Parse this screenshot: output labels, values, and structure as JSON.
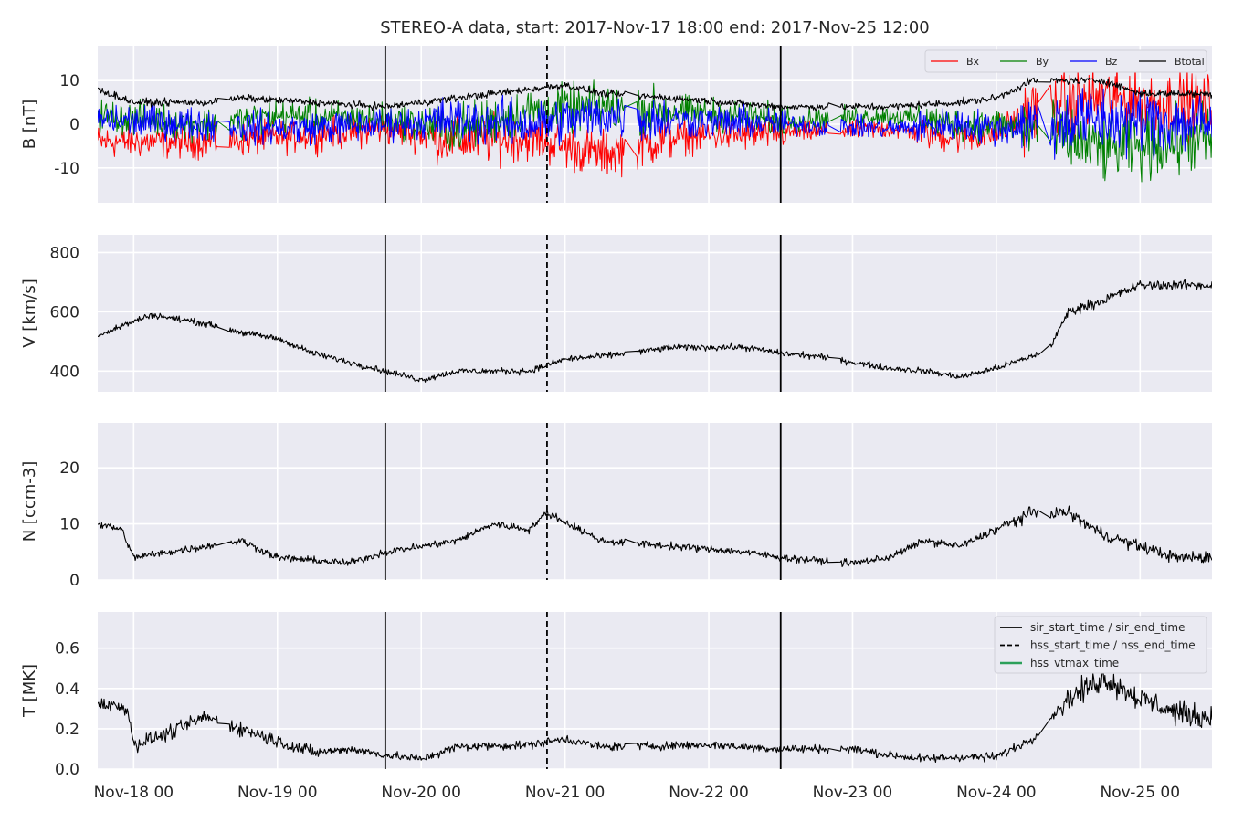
{
  "title": "STEREO-A data, start: 2017-Nov-17 18:00  end: 2017-Nov-25 12:00",
  "colors": {
    "bx": "#ff0000",
    "by": "#008000",
    "bz": "#0000ff",
    "btotal": "#000000",
    "vt": "#2ca05a",
    "bg": "#eaeaf2",
    "grid": "#ffffff"
  },
  "chart_data": {
    "type": "line",
    "x_range": [
      "2017-11-17 18:00",
      "2017-11-25 12:00"
    ],
    "xticks": [
      "Nov-18 00",
      "Nov-19 00",
      "Nov-20 00",
      "Nov-21 00",
      "Nov-22 00",
      "Nov-23 00",
      "Nov-24 00",
      "Nov-25 00"
    ],
    "vlines": [
      {
        "time": "2017-11-19 18:00",
        "style": "solid",
        "label": "sir_start_time / sir_end_time"
      },
      {
        "time": "2017-11-20 21:00",
        "style": "dashed",
        "label": "hss_start_time / hss_end_time"
      },
      {
        "time": "2017-11-22 12:00",
        "style": "solid",
        "label": "sir_start_time / sir_end_time"
      }
    ],
    "panels": [
      {
        "ylabel": "B [nT]",
        "ylim": [
          -18,
          18
        ],
        "yticks": [
          -10,
          0,
          10
        ],
        "legend": {
          "position": "top-right",
          "entries": [
            "Bx",
            "By",
            "Bz",
            "Btotal"
          ]
        },
        "series": [
          {
            "name": "Bx",
            "color": "#ff0000",
            "knots": [
              [
                "2017-11-17 18:00",
                -4
              ],
              [
                "2017-11-18 12:00",
                -4
              ],
              [
                "2017-11-19 00:00",
                -3
              ],
              [
                "2017-11-19 18:00",
                -1
              ],
              [
                "2017-11-20 06:00",
                -4
              ],
              [
                "2017-11-20 18:00",
                -3
              ],
              [
                "2017-11-21 06:00",
                -7
              ],
              [
                "2017-11-21 18:00",
                -3
              ],
              [
                "2017-11-22 12:00",
                -2
              ],
              [
                "2017-11-23 06:00",
                -1
              ],
              [
                "2017-11-23 18:00",
                -3
              ],
              [
                "2017-11-24 00:00",
                -2
              ],
              [
                "2017-11-24 06:00",
                3
              ],
              [
                "2017-11-24 18:00",
                6
              ],
              [
                "2017-11-25 12:00",
                4
              ]
            ]
          },
          {
            "name": "By",
            "color": "#008000",
            "knots": [
              [
                "2017-11-17 18:00",
                2
              ],
              [
                "2017-11-18 12:00",
                0
              ],
              [
                "2017-11-19 00:00",
                2
              ],
              [
                "2017-11-19 18:00",
                1
              ],
              [
                "2017-11-20 06:00",
                -1
              ],
              [
                "2017-11-20 18:00",
                3
              ],
              [
                "2017-11-21 06:00",
                4
              ],
              [
                "2017-11-21 18:00",
                3
              ],
              [
                "2017-11-22 12:00",
                1
              ],
              [
                "2017-11-23 06:00",
                2
              ],
              [
                "2017-11-23 18:00",
                0
              ],
              [
                "2017-11-24 00:00",
                0
              ],
              [
                "2017-11-24 06:00",
                -1
              ],
              [
                "2017-11-24 18:00",
                -6
              ],
              [
                "2017-11-25 12:00",
                -3
              ]
            ]
          },
          {
            "name": "Bz",
            "color": "#0000ff",
            "knots": [
              [
                "2017-11-17 18:00",
                1
              ],
              [
                "2017-11-18 12:00",
                0
              ],
              [
                "2017-11-19 00:00",
                -1
              ],
              [
                "2017-11-19 18:00",
                0
              ],
              [
                "2017-11-20 06:00",
                1
              ],
              [
                "2017-11-20 18:00",
                0
              ],
              [
                "2017-11-21 06:00",
                2
              ],
              [
                "2017-11-21 18:00",
                1
              ],
              [
                "2017-11-22 12:00",
                0
              ],
              [
                "2017-11-23 06:00",
                -1
              ],
              [
                "2017-11-23 18:00",
                0
              ],
              [
                "2017-11-24 00:00",
                -1
              ],
              [
                "2017-11-24 06:00",
                0
              ],
              [
                "2017-11-24 18:00",
                1
              ],
              [
                "2017-11-25 12:00",
                0
              ]
            ]
          },
          {
            "name": "Btotal",
            "color": "#000000",
            "knots": [
              [
                "2017-11-17 18:00",
                8
              ],
              [
                "2017-11-18 00:00",
                5
              ],
              [
                "2017-11-18 12:00",
                5
              ],
              [
                "2017-11-18 18:00",
                6
              ],
              [
                "2017-11-19 06:00",
                5
              ],
              [
                "2017-11-19 18:00",
                4
              ],
              [
                "2017-11-20 00:00",
                5
              ],
              [
                "2017-11-20 12:00",
                7
              ],
              [
                "2017-11-21 00:00",
                9
              ],
              [
                "2017-11-21 06:00",
                7
              ],
              [
                "2017-11-21 18:00",
                6
              ],
              [
                "2017-11-22 12:00",
                4
              ],
              [
                "2017-11-23 06:00",
                4
              ],
              [
                "2017-11-23 18:00",
                5
              ],
              [
                "2017-11-24 00:00",
                6
              ],
              [
                "2017-11-24 06:00",
                10
              ],
              [
                "2017-11-24 18:00",
                10
              ],
              [
                "2017-11-25 00:00",
                7
              ],
              [
                "2017-11-25 12:00",
                7
              ]
            ]
          }
        ]
      },
      {
        "ylabel": "V [km/s]",
        "ylim": [
          330,
          860
        ],
        "yticks": [
          400,
          600,
          800
        ],
        "series": [
          {
            "name": "V",
            "color": "#000000",
            "knots": [
              [
                "2017-11-17 18:00",
                520
              ],
              [
                "2017-11-17 23:00",
                560
              ],
              [
                "2017-11-18 03:00",
                590
              ],
              [
                "2017-11-18 12:00",
                560
              ],
              [
                "2017-11-18 18:00",
                530
              ],
              [
                "2017-11-19 00:00",
                510
              ],
              [
                "2017-11-19 06:00",
                460
              ],
              [
                "2017-11-19 12:00",
                430
              ],
              [
                "2017-11-19 18:00",
                400
              ],
              [
                "2017-11-20 00:00",
                370
              ],
              [
                "2017-11-20 06:00",
                400
              ],
              [
                "2017-11-20 18:00",
                400
              ],
              [
                "2017-11-21 00:00",
                440
              ],
              [
                "2017-11-21 06:00",
                450
              ],
              [
                "2017-11-21 18:00",
                480
              ],
              [
                "2017-11-22 06:00",
                480
              ],
              [
                "2017-11-22 12:00",
                460
              ],
              [
                "2017-11-22 18:00",
                450
              ],
              [
                "2017-11-23 06:00",
                410
              ],
              [
                "2017-11-23 12:00",
                400
              ],
              [
                "2017-11-23 18:00",
                380
              ],
              [
                "2017-11-24 00:00",
                410
              ],
              [
                "2017-11-24 06:00",
                450
              ],
              [
                "2017-11-24 09:00",
                480
              ],
              [
                "2017-11-24 12:00",
                600
              ],
              [
                "2017-11-24 18:00",
                640
              ],
              [
                "2017-11-25 00:00",
                690
              ],
              [
                "2017-11-25 12:00",
                690
              ]
            ]
          }
        ]
      },
      {
        "ylabel": "N [ccm-3]",
        "ylim": [
          0,
          28
        ],
        "yticks": [
          0,
          10,
          20
        ],
        "series": [
          {
            "name": "N",
            "color": "#000000",
            "knots": [
              [
                "2017-11-17 18:00",
                10
              ],
              [
                "2017-11-17 22:00",
                9
              ],
              [
                "2017-11-18 00:00",
                4
              ],
              [
                "2017-11-18 12:00",
                6
              ],
              [
                "2017-11-18 18:00",
                7
              ],
              [
                "2017-11-19 00:00",
                4
              ],
              [
                "2017-11-19 12:00",
                3
              ],
              [
                "2017-11-19 18:00",
                5
              ],
              [
                "2017-11-20 06:00",
                7
              ],
              [
                "2017-11-20 12:00",
                10
              ],
              [
                "2017-11-20 18:00",
                9
              ],
              [
                "2017-11-20 21:00",
                12
              ],
              [
                "2017-11-21 06:00",
                7
              ],
              [
                "2017-11-21 18:00",
                6
              ],
              [
                "2017-11-22 06:00",
                5
              ],
              [
                "2017-11-22 12:00",
                4
              ],
              [
                "2017-11-23 00:00",
                3
              ],
              [
                "2017-11-23 06:00",
                4
              ],
              [
                "2017-11-23 12:00",
                7
              ],
              [
                "2017-11-23 18:00",
                6
              ],
              [
                "2017-11-24 00:00",
                9
              ],
              [
                "2017-11-24 06:00",
                12
              ],
              [
                "2017-11-24 12:00",
                12
              ],
              [
                "2017-11-24 18:00",
                8
              ],
              [
                "2017-11-25 00:00",
                6
              ],
              [
                "2017-11-25 06:00",
                4
              ],
              [
                "2017-11-25 12:00",
                4
              ]
            ]
          }
        ]
      },
      {
        "ylabel": "T [MK]",
        "ylim": [
          0,
          0.78
        ],
        "yticks": [
          0.0,
          0.2,
          0.4,
          0.6
        ],
        "legend": {
          "position": "top-right",
          "entries": [
            "sir_start_time / sir_end_time",
            "hss_start_time / hss_end_time",
            "hss_vtmax_time"
          ]
        },
        "series": [
          {
            "name": "T",
            "color": "#000000",
            "knots": [
              [
                "2017-11-17 18:00",
                0.33
              ],
              [
                "2017-11-17 23:00",
                0.3
              ],
              [
                "2017-11-18 00:00",
                0.12
              ],
              [
                "2017-11-18 06:00",
                0.18
              ],
              [
                "2017-11-18 12:00",
                0.26
              ],
              [
                "2017-11-18 18:00",
                0.2
              ],
              [
                "2017-11-19 00:00",
                0.14
              ],
              [
                "2017-11-19 06:00",
                0.08
              ],
              [
                "2017-11-19 12:00",
                0.1
              ],
              [
                "2017-11-19 18:00",
                0.07
              ],
              [
                "2017-11-20 00:00",
                0.05
              ],
              [
                "2017-11-20 06:00",
                0.11
              ],
              [
                "2017-11-20 18:00",
                0.12
              ],
              [
                "2017-11-21 00:00",
                0.15
              ],
              [
                "2017-11-21 06:00",
                0.11
              ],
              [
                "2017-11-22 00:00",
                0.12
              ],
              [
                "2017-11-22 12:00",
                0.1
              ],
              [
                "2017-11-23 00:00",
                0.1
              ],
              [
                "2017-11-23 06:00",
                0.07
              ],
              [
                "2017-11-23 12:00",
                0.05
              ],
              [
                "2017-11-23 18:00",
                0.06
              ],
              [
                "2017-11-24 00:00",
                0.06
              ],
              [
                "2017-11-24 06:00",
                0.15
              ],
              [
                "2017-11-24 12:00",
                0.35
              ],
              [
                "2017-11-24 18:00",
                0.45
              ],
              [
                "2017-11-25 00:00",
                0.35
              ],
              [
                "2017-11-25 06:00",
                0.28
              ],
              [
                "2017-11-25 12:00",
                0.25
              ]
            ]
          }
        ]
      }
    ]
  }
}
